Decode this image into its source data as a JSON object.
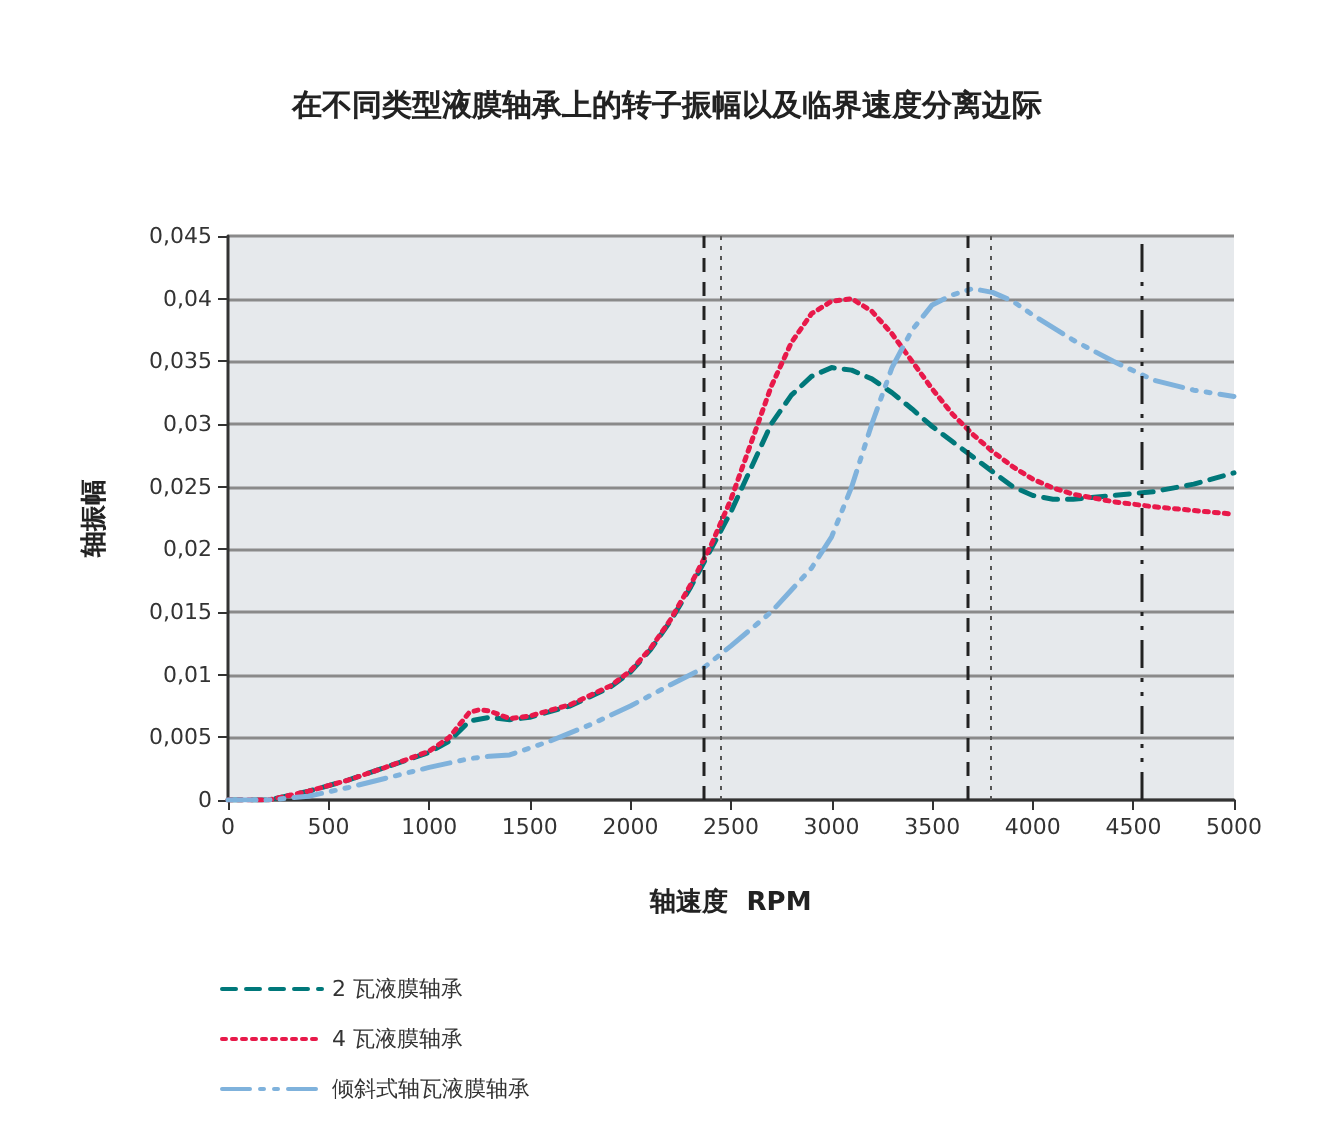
{
  "chart_data": {
    "type": "line",
    "title": "在不同类型液膜轴承上的转子振幅以及临界速度分离边际",
    "xlabel": "轴速度  RPM",
    "ylabel": "轴振幅",
    "xlim": [
      0,
      5000
    ],
    "xticks": [
      0,
      500,
      1000,
      1500,
      2000,
      2500,
      3000,
      3500,
      4000,
      4500,
      5000
    ],
    "ylim": [
      0,
      0.045
    ],
    "yticks": [
      0,
      {
        "value": 0.005,
        "label": "0,005"
      },
      {
        "value": 0.01,
        "label": "0,01"
      },
      {
        "value": 0.015,
        "label": "0,015"
      },
      {
        "value": 0.02,
        "label": "0,02"
      },
      {
        "value": 0.025,
        "label": "0,025"
      },
      {
        "value": 0.03,
        "label": "0,03"
      },
      {
        "value": 0.035,
        "label": "0,035"
      },
      {
        "value": 0.04,
        "label": "0,04"
      },
      {
        "value": 0.045,
        "label": "0,045"
      }
    ],
    "grid": "y",
    "legend": "bottom left",
    "marker": "none",
    "series": [
      {
        "name": "2 瓦液膜轴承",
        "color": "#00787a",
        "line_style": "dashed",
        "x": [
          0,
          200,
          400,
          600,
          800,
          1000,
          1100,
          1200,
          1300,
          1400,
          1500,
          1700,
          1900,
          2000,
          2100,
          2200,
          2300,
          2400,
          2500,
          2600,
          2700,
          2800,
          2900,
          3000,
          3100,
          3200,
          3300,
          3400,
          3500,
          3600,
          3700,
          3800,
          3900,
          4000,
          4100,
          4200,
          4400,
          4600,
          4800,
          5000
        ],
        "values": [
          0,
          0,
          0.0007,
          0.0016,
          0.0027,
          0.0038,
          0.0047,
          0.0063,
          0.0066,
          0.0064,
          0.0066,
          0.0075,
          0.009,
          0.0102,
          0.012,
          0.0143,
          0.017,
          0.02,
          0.023,
          0.0265,
          0.03,
          0.0323,
          0.0338,
          0.0345,
          0.0343,
          0.0336,
          0.0325,
          0.0312,
          0.0298,
          0.0286,
          0.0274,
          0.0262,
          0.025,
          0.0243,
          0.024,
          0.024,
          0.0243,
          0.0246,
          0.0252,
          0.0261
        ]
      },
      {
        "name": "4 瓦液膜轴承",
        "color": "#e8194a",
        "line_style": "dotted",
        "x": [
          0,
          200,
          400,
          600,
          800,
          1000,
          1100,
          1200,
          1250,
          1300,
          1400,
          1500,
          1700,
          1900,
          2000,
          2100,
          2200,
          2300,
          2400,
          2500,
          2600,
          2700,
          2800,
          2900,
          3000,
          3100,
          3200,
          3300,
          3400,
          3500,
          3600,
          3700,
          3800,
          3900,
          4000,
          4100,
          4200,
          4400,
          4600,
          4800,
          5000
        ],
        "values": [
          0,
          0,
          0.0007,
          0.0016,
          0.0027,
          0.0039,
          0.005,
          0.007,
          0.0072,
          0.0071,
          0.0065,
          0.0067,
          0.0076,
          0.0091,
          0.0103,
          0.0121,
          0.0144,
          0.0172,
          0.0203,
          0.024,
          0.0285,
          0.033,
          0.0365,
          0.0388,
          0.0398,
          0.04,
          0.039,
          0.0372,
          0.035,
          0.0328,
          0.0308,
          0.0292,
          0.0278,
          0.0266,
          0.0256,
          0.0249,
          0.0244,
          0.0238,
          0.0234,
          0.0231,
          0.0228
        ]
      },
      {
        "name": "倾斜式轴瓦液膜轴承",
        "color": "#7fb2dc",
        "line_style": "dashdot",
        "x": [
          0,
          200,
          400,
          600,
          800,
          1000,
          1200,
          1300,
          1400,
          1600,
          1800,
          2000,
          2200,
          2360,
          2500,
          2700,
          2900,
          3000,
          3100,
          3200,
          3300,
          3400,
          3500,
          3600,
          3700,
          3800,
          3900,
          4000,
          4200,
          4400,
          4600,
          4800,
          5000
        ],
        "values": [
          0,
          0,
          0.0003,
          0.001,
          0.0018,
          0.0026,
          0.0033,
          0.0035,
          0.0036,
          0.0047,
          0.006,
          0.0075,
          0.0092,
          0.0105,
          0.0123,
          0.015,
          0.0185,
          0.021,
          0.025,
          0.03,
          0.0345,
          0.0375,
          0.0395,
          0.0403,
          0.0408,
          0.0405,
          0.0398,
          0.0387,
          0.0367,
          0.035,
          0.0335,
          0.0327,
          0.0322
        ]
      }
    ],
    "ref_lines": [
      {
        "axis": "x",
        "value": 2360,
        "color": "#222222",
        "line_style": "dashed"
      },
      {
        "axis": "x",
        "value": 2450,
        "color": "#555555",
        "line_style": "dotted"
      },
      {
        "axis": "x",
        "value": 3680,
        "color": "#222222",
        "line_style": "dashed"
      },
      {
        "axis": "x",
        "value": 3790,
        "color": "#555555",
        "line_style": "dotted"
      },
      {
        "axis": "x",
        "value": 4540,
        "color": "#222222",
        "line_style": "dashdot"
      }
    ]
  }
}
